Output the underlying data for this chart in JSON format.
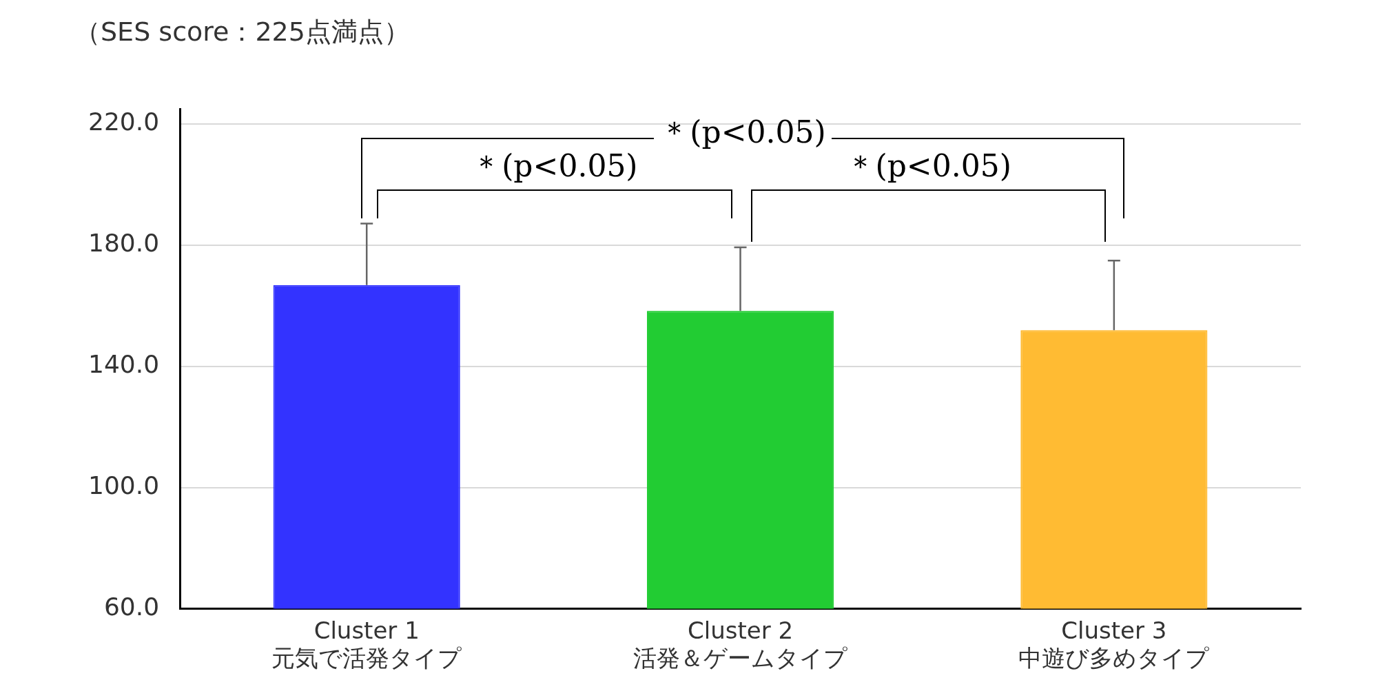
{
  "chart_data": {
    "type": "bar",
    "ylabel": "（SES score：225点満点）",
    "categories": [
      "Cluster 1\n元気で活発タイプ",
      "Cluster 2\n活発＆ゲームタイプ",
      "Cluster 3\n中遊び多めタイプ"
    ],
    "values": [
      166.8,
      158.3,
      151.9
    ],
    "colors": [
      "#3333ff",
      "#22cc33",
      "#ffbb33"
    ],
    "errors": [
      [
        166.8,
        187.1
      ],
      [
        158.3,
        179.3
      ],
      [
        151.9,
        174.9
      ]
    ],
    "ylim": [
      60,
      225
    ],
    "yticks": [
      {
        "value": 60,
        "label": "60.0"
      },
      {
        "value": 100,
        "label": "100.0"
      },
      {
        "value": 140,
        "label": "140.0"
      },
      {
        "value": 180,
        "label": "180.0"
      },
      {
        "value": 220,
        "label": "220.0"
      }
    ],
    "grid": "y",
    "legend": false,
    "annotations": [
      "＊(p<0.05)",
      "＊(p<0.05)",
      "＊(p<0.05)"
    ]
  }
}
